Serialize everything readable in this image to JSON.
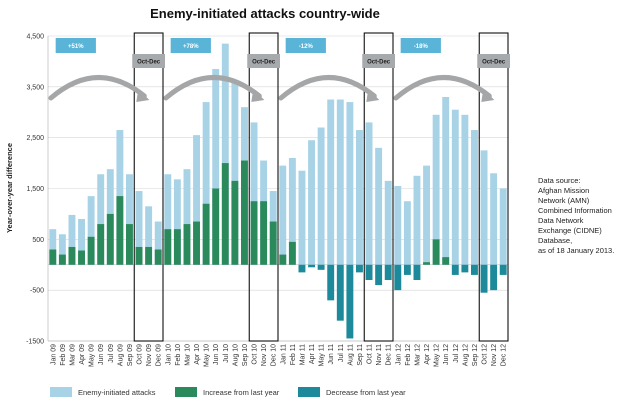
{
  "chart_data": {
    "type": "bar",
    "title": "Enemy-initiated attacks country-wide",
    "ylabel": "Year-over-year difference",
    "ylim": [
      -1500,
      4500
    ],
    "yticks": [
      -1500,
      -500,
      500,
      1500,
      2500,
      3500,
      4500
    ],
    "yticklabels": [
      "-1500",
      "-500",
      "500",
      "1,500",
      "2,500",
      "3,500",
      "4,500"
    ],
    "grid": true,
    "categories": [
      "Jan 09",
      "Feb 09",
      "Mar 09",
      "Apr 09",
      "May 09",
      "Jun 09",
      "Jul 09",
      "Aug 09",
      "Sep 09",
      "Oct 09",
      "Nov 09",
      "Dec 09",
      "Jan 10",
      "Feb 10",
      "Mar 10",
      "Apr 10",
      "May 10",
      "Jun 10",
      "Jul 10",
      "Aug 10",
      "Sep 10",
      "Oct 10",
      "Nov 10",
      "Dec 10",
      "Jan 11",
      "Feb 11",
      "Mar 11",
      "Apr 11",
      "May 11",
      "Jun 11",
      "Jul 11",
      "Aug 11",
      "Sep 11",
      "Oct 11",
      "Nov 11",
      "Dec 11",
      "Jan 12",
      "Feb 12",
      "Mar 12",
      "Apr 12",
      "May 12",
      "Jun 12",
      "Jul 12",
      "Aug 12",
      "Sep 12",
      "Oct 12",
      "Nov 12",
      "Dec 12"
    ],
    "series": [
      {
        "name": "Enemy-initiated attacks",
        "color": "#a8d3e6",
        "values": [
          700,
          600,
          980,
          900,
          1350,
          1780,
          1880,
          2650,
          1780,
          1450,
          1150,
          850,
          1780,
          1680,
          1880,
          2550,
          3200,
          3850,
          4350,
          3580,
          3100,
          2800,
          2050,
          1450,
          1950,
          2100,
          1850,
          2450,
          2700,
          3250,
          3250,
          3200,
          2650,
          2800,
          2300,
          1650,
          1550,
          1250,
          1750,
          1950,
          2950,
          3300,
          3050,
          2950,
          2650,
          2250,
          1800,
          1500
        ]
      },
      {
        "name": "Increase from last year",
        "color": "#2b8a5c",
        "values": [
          300,
          200,
          350,
          280,
          550,
          800,
          1000,
          1350,
          800,
          350,
          350,
          300,
          700,
          700,
          800,
          850,
          1200,
          1500,
          2000,
          1650,
          2050,
          1250,
          1250,
          850,
          200,
          450,
          0,
          0,
          0,
          0,
          0,
          0,
          0,
          0,
          0,
          0,
          0,
          0,
          0,
          50,
          500,
          150,
          0,
          0,
          0,
          0,
          0,
          0
        ]
      },
      {
        "name": "Decrease from last year",
        "color": "#1c8a9a",
        "values": [
          0,
          0,
          0,
          0,
          0,
          0,
          0,
          0,
          0,
          0,
          0,
          0,
          0,
          0,
          0,
          0,
          0,
          0,
          0,
          0,
          0,
          0,
          0,
          0,
          0,
          0,
          -150,
          -50,
          -100,
          -700,
          -1100,
          -1450,
          -150,
          -300,
          -400,
          -300,
          -500,
          -200,
          -300,
          0,
          0,
          0,
          -200,
          -150,
          -200,
          -550,
          -500,
          -200
        ]
      }
    ],
    "annotations": {
      "percent_labels": [
        "+51%",
        "+78%",
        "-12%",
        "-18%"
      ],
      "quarter_label": "Oct-Dec"
    },
    "source_note": [
      "Data source:",
      "Afghan Mission",
      "Network (AMN)",
      "Combined Information",
      "Data Network",
      "Exchange (CIDNE)",
      "Database,",
      "as of 18 January 2013."
    ],
    "legend": {
      "position": "bottom",
      "entries": [
        "Enemy-initiated attacks",
        "Increase from last year",
        "Decrease from last year"
      ]
    },
    "colors": {
      "light": "#a8d3e6",
      "increase": "#2b8a5c",
      "decrease": "#1c8a9a",
      "pctbox": "#5ab4d8",
      "qbox": "#a7aaad",
      "arrow": "#a4a6a8"
    }
  }
}
